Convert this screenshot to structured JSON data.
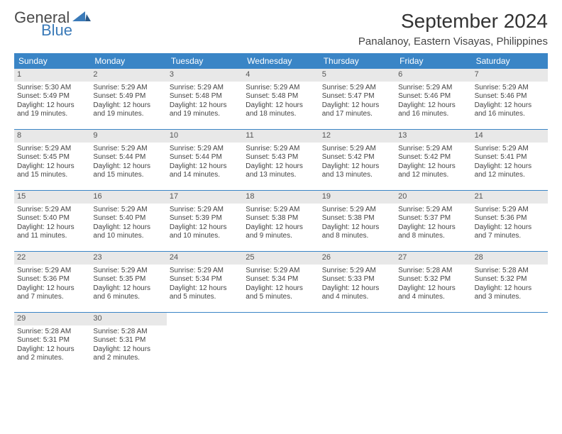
{
  "logo": {
    "text1": "General",
    "text2": "Blue"
  },
  "title": "September 2024",
  "location": "Panalanoy, Eastern Visayas, Philippines",
  "colors": {
    "header_bg": "#3a85c6",
    "header_text": "#ffffff",
    "daynum_bg": "#e8e8e8",
    "cell_border": "#3a85c6",
    "logo_accent": "#3a7ab8"
  },
  "dow": [
    "Sunday",
    "Monday",
    "Tuesday",
    "Wednesday",
    "Thursday",
    "Friday",
    "Saturday"
  ],
  "days": [
    {
      "n": "1",
      "sr": "5:30 AM",
      "ss": "5:49 PM",
      "dl": "12 hours and 19 minutes."
    },
    {
      "n": "2",
      "sr": "5:29 AM",
      "ss": "5:49 PM",
      "dl": "12 hours and 19 minutes."
    },
    {
      "n": "3",
      "sr": "5:29 AM",
      "ss": "5:48 PM",
      "dl": "12 hours and 19 minutes."
    },
    {
      "n": "4",
      "sr": "5:29 AM",
      "ss": "5:48 PM",
      "dl": "12 hours and 18 minutes."
    },
    {
      "n": "5",
      "sr": "5:29 AM",
      "ss": "5:47 PM",
      "dl": "12 hours and 17 minutes."
    },
    {
      "n": "6",
      "sr": "5:29 AM",
      "ss": "5:46 PM",
      "dl": "12 hours and 16 minutes."
    },
    {
      "n": "7",
      "sr": "5:29 AM",
      "ss": "5:46 PM",
      "dl": "12 hours and 16 minutes."
    },
    {
      "n": "8",
      "sr": "5:29 AM",
      "ss": "5:45 PM",
      "dl": "12 hours and 15 minutes."
    },
    {
      "n": "9",
      "sr": "5:29 AM",
      "ss": "5:44 PM",
      "dl": "12 hours and 15 minutes."
    },
    {
      "n": "10",
      "sr": "5:29 AM",
      "ss": "5:44 PM",
      "dl": "12 hours and 14 minutes."
    },
    {
      "n": "11",
      "sr": "5:29 AM",
      "ss": "5:43 PM",
      "dl": "12 hours and 13 minutes."
    },
    {
      "n": "12",
      "sr": "5:29 AM",
      "ss": "5:42 PM",
      "dl": "12 hours and 13 minutes."
    },
    {
      "n": "13",
      "sr": "5:29 AM",
      "ss": "5:42 PM",
      "dl": "12 hours and 12 minutes."
    },
    {
      "n": "14",
      "sr": "5:29 AM",
      "ss": "5:41 PM",
      "dl": "12 hours and 12 minutes."
    },
    {
      "n": "15",
      "sr": "5:29 AM",
      "ss": "5:40 PM",
      "dl": "12 hours and 11 minutes."
    },
    {
      "n": "16",
      "sr": "5:29 AM",
      "ss": "5:40 PM",
      "dl": "12 hours and 10 minutes."
    },
    {
      "n": "17",
      "sr": "5:29 AM",
      "ss": "5:39 PM",
      "dl": "12 hours and 10 minutes."
    },
    {
      "n": "18",
      "sr": "5:29 AM",
      "ss": "5:38 PM",
      "dl": "12 hours and 9 minutes."
    },
    {
      "n": "19",
      "sr": "5:29 AM",
      "ss": "5:38 PM",
      "dl": "12 hours and 8 minutes."
    },
    {
      "n": "20",
      "sr": "5:29 AM",
      "ss": "5:37 PM",
      "dl": "12 hours and 8 minutes."
    },
    {
      "n": "21",
      "sr": "5:29 AM",
      "ss": "5:36 PM",
      "dl": "12 hours and 7 minutes."
    },
    {
      "n": "22",
      "sr": "5:29 AM",
      "ss": "5:36 PM",
      "dl": "12 hours and 7 minutes."
    },
    {
      "n": "23",
      "sr": "5:29 AM",
      "ss": "5:35 PM",
      "dl": "12 hours and 6 minutes."
    },
    {
      "n": "24",
      "sr": "5:29 AM",
      "ss": "5:34 PM",
      "dl": "12 hours and 5 minutes."
    },
    {
      "n": "25",
      "sr": "5:29 AM",
      "ss": "5:34 PM",
      "dl": "12 hours and 5 minutes."
    },
    {
      "n": "26",
      "sr": "5:29 AM",
      "ss": "5:33 PM",
      "dl": "12 hours and 4 minutes."
    },
    {
      "n": "27",
      "sr": "5:28 AM",
      "ss": "5:32 PM",
      "dl": "12 hours and 4 minutes."
    },
    {
      "n": "28",
      "sr": "5:28 AM",
      "ss": "5:32 PM",
      "dl": "12 hours and 3 minutes."
    },
    {
      "n": "29",
      "sr": "5:28 AM",
      "ss": "5:31 PM",
      "dl": "12 hours and 2 minutes."
    },
    {
      "n": "30",
      "sr": "5:28 AM",
      "ss": "5:31 PM",
      "dl": "12 hours and 2 minutes."
    }
  ],
  "labels": {
    "sunrise": "Sunrise: ",
    "sunset": "Sunset: ",
    "daylight": "Daylight: "
  }
}
